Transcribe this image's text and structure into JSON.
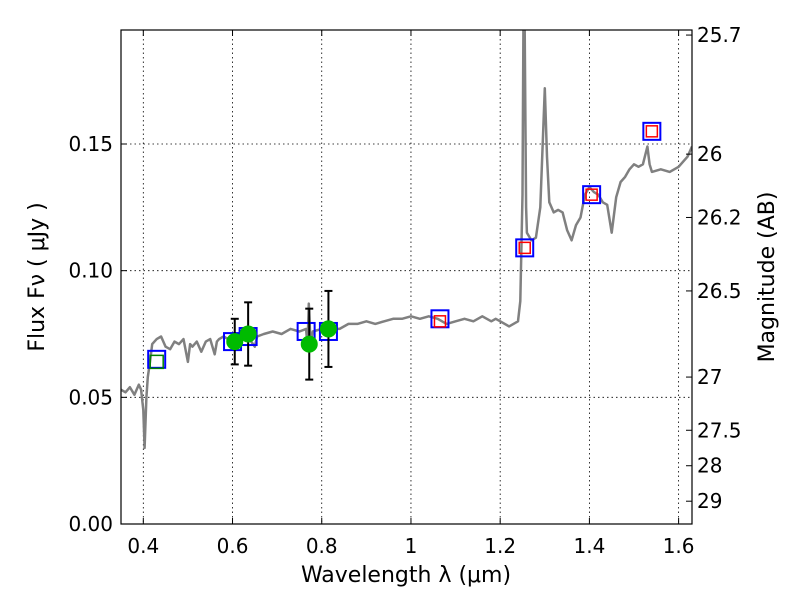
{
  "chart_data": {
    "type": "scatter",
    "xlabel": "Wavelength  λ (μm)",
    "ylabel": "Flux  Fν  ( μJy )",
    "y2label": "Magnitude (AB)",
    "xlim": [
      0.35,
      1.63
    ],
    "ylim": [
      0.0,
      0.195
    ],
    "grid": true,
    "x_ticks": [
      0.4,
      0.6,
      0.8,
      1.0,
      1.2,
      1.4,
      1.6
    ],
    "x_tick_labels": [
      "0.4",
      "0.6",
      "0.8",
      "1",
      "1.2",
      "1.4",
      "1.6"
    ],
    "y_ticks": [
      0.0,
      0.05,
      0.1,
      0.15
    ],
    "y_tick_labels": [
      "0.00",
      "0.05",
      "0.10",
      "0.15"
    ],
    "y2_ticks": [
      {
        "label": "25.7",
        "flux": 0.193
      },
      {
        "label": "26",
        "flux": 0.146
      },
      {
        "label": "26.2",
        "flux": 0.121
      },
      {
        "label": "26.5",
        "flux": 0.092
      },
      {
        "label": "27",
        "flux": 0.058
      },
      {
        "label": "27.5",
        "flux": 0.037
      },
      {
        "label": "28",
        "flux": 0.023
      },
      {
        "label": "29",
        "flux": 0.009
      }
    ],
    "model_color": "#808080",
    "model_spectrum": [
      [
        0.35,
        0.053
      ],
      [
        0.36,
        0.052
      ],
      [
        0.37,
        0.054
      ],
      [
        0.38,
        0.051
      ],
      [
        0.39,
        0.055
      ],
      [
        0.395,
        0.053
      ],
      [
        0.4,
        0.045
      ],
      [
        0.403,
        0.03
      ],
      [
        0.407,
        0.05
      ],
      [
        0.41,
        0.058
      ],
      [
        0.415,
        0.064
      ],
      [
        0.42,
        0.071
      ],
      [
        0.43,
        0.073
      ],
      [
        0.44,
        0.074
      ],
      [
        0.45,
        0.07
      ],
      [
        0.46,
        0.069
      ],
      [
        0.47,
        0.072
      ],
      [
        0.48,
        0.071
      ],
      [
        0.49,
        0.073
      ],
      [
        0.5,
        0.064
      ],
      [
        0.505,
        0.071
      ],
      [
        0.51,
        0.07
      ],
      [
        0.52,
        0.072
      ],
      [
        0.53,
        0.068
      ],
      [
        0.54,
        0.072
      ],
      [
        0.55,
        0.073
      ],
      [
        0.56,
        0.067
      ],
      [
        0.565,
        0.072
      ],
      [
        0.57,
        0.073
      ],
      [
        0.58,
        0.074
      ],
      [
        0.59,
        0.073
      ],
      [
        0.6,
        0.074
      ],
      [
        0.61,
        0.072
      ],
      [
        0.62,
        0.074
      ],
      [
        0.63,
        0.075
      ],
      [
        0.65,
        0.07
      ],
      [
        0.655,
        0.074
      ],
      [
        0.67,
        0.075
      ],
      [
        0.69,
        0.076
      ],
      [
        0.71,
        0.075
      ],
      [
        0.73,
        0.077
      ],
      [
        0.75,
        0.076
      ],
      [
        0.765,
        0.077
      ],
      [
        0.768,
        0.07
      ],
      [
        0.771,
        0.087
      ],
      [
        0.775,
        0.071
      ],
      [
        0.78,
        0.076
      ],
      [
        0.8,
        0.077
      ],
      [
        0.82,
        0.077
      ],
      [
        0.84,
        0.077
      ],
      [
        0.86,
        0.079
      ],
      [
        0.88,
        0.079
      ],
      [
        0.9,
        0.08
      ],
      [
        0.92,
        0.079
      ],
      [
        0.94,
        0.08
      ],
      [
        0.96,
        0.081
      ],
      [
        0.98,
        0.081
      ],
      [
        1.0,
        0.082
      ],
      [
        1.02,
        0.081
      ],
      [
        1.04,
        0.082
      ],
      [
        1.06,
        0.081
      ],
      [
        1.08,
        0.079
      ],
      [
        1.1,
        0.08
      ],
      [
        1.12,
        0.081
      ],
      [
        1.14,
        0.08
      ],
      [
        1.16,
        0.082
      ],
      [
        1.18,
        0.08
      ],
      [
        1.19,
        0.081
      ],
      [
        1.2,
        0.08
      ],
      [
        1.22,
        0.078
      ],
      [
        1.24,
        0.08
      ],
      [
        1.245,
        0.088
      ],
      [
        1.25,
        0.13
      ],
      [
        1.252,
        0.195
      ],
      [
        1.255,
        0.195
      ],
      [
        1.258,
        0.125
      ],
      [
        1.26,
        0.115
      ],
      [
        1.27,
        0.112
      ],
      [
        1.28,
        0.113
      ],
      [
        1.29,
        0.125
      ],
      [
        1.3,
        0.172
      ],
      [
        1.305,
        0.145
      ],
      [
        1.31,
        0.127
      ],
      [
        1.32,
        0.123
      ],
      [
        1.33,
        0.124
      ],
      [
        1.34,
        0.123
      ],
      [
        1.35,
        0.116
      ],
      [
        1.36,
        0.112
      ],
      [
        1.37,
        0.118
      ],
      [
        1.38,
        0.121
      ],
      [
        1.39,
        0.13
      ],
      [
        1.4,
        0.133
      ],
      [
        1.41,
        0.131
      ],
      [
        1.42,
        0.13
      ],
      [
        1.43,
        0.127
      ],
      [
        1.44,
        0.126
      ],
      [
        1.45,
        0.115
      ],
      [
        1.46,
        0.129
      ],
      [
        1.47,
        0.135
      ],
      [
        1.48,
        0.137
      ],
      [
        1.49,
        0.14
      ],
      [
        1.5,
        0.142
      ],
      [
        1.51,
        0.141
      ],
      [
        1.52,
        0.142
      ],
      [
        1.53,
        0.149
      ],
      [
        1.535,
        0.142
      ],
      [
        1.54,
        0.139
      ],
      [
        1.56,
        0.14
      ],
      [
        1.58,
        0.139
      ],
      [
        1.6,
        0.141
      ],
      [
        1.61,
        0.143
      ],
      [
        1.62,
        0.145
      ],
      [
        1.63,
        0.149
      ]
    ],
    "series": [
      {
        "marker": "blue-square",
        "color": "#0000ff",
        "x": [
          0.43,
          0.6,
          0.635,
          0.765,
          0.815,
          1.065,
          1.255,
          1.405,
          1.54
        ],
        "y": [
          0.065,
          0.072,
          0.074,
          0.076,
          0.076,
          0.081,
          0.109,
          0.13,
          0.155
        ]
      },
      {
        "marker": "red-square",
        "color": "#ff0000",
        "x": [
          1.065,
          1.255,
          1.405,
          1.54
        ],
        "y": [
          0.08,
          0.109,
          0.13,
          0.155
        ]
      },
      {
        "marker": "green-square",
        "color": "#008000",
        "x": [
          0.43
        ],
        "y": [
          0.064
        ]
      },
      {
        "marker": "green-circle",
        "color": "#00bb00",
        "x": [
          0.605,
          0.635,
          0.772,
          0.815
        ],
        "y": [
          0.072,
          0.075,
          0.071,
          0.077
        ],
        "yerr": [
          0.009,
          0.0125,
          0.014,
          0.015
        ]
      }
    ]
  }
}
